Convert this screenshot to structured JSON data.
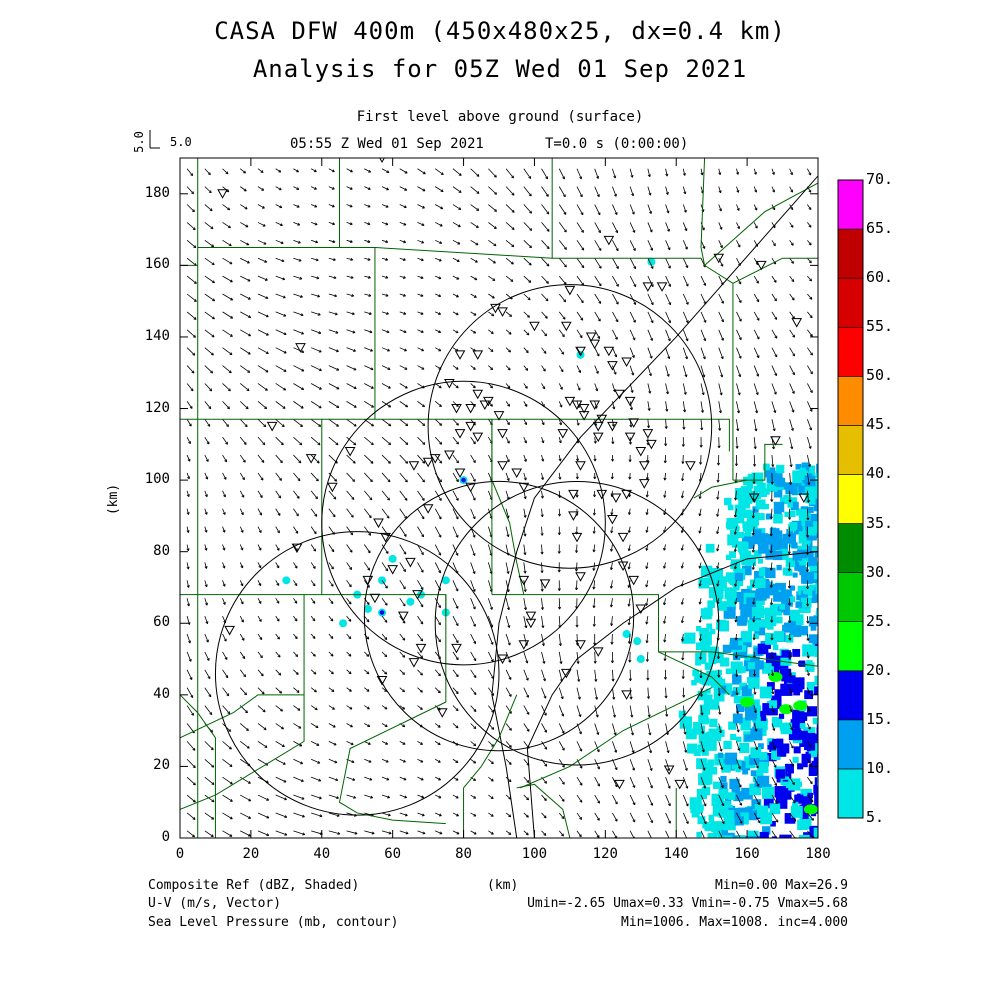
{
  "title": {
    "line1": "CASA DFW 400m (450x480x25, dx=0.4 km)",
    "line2": "Analysis for 05Z Wed 01 Sep 2021"
  },
  "subtitle": {
    "level": "First level above ground (surface)",
    "time": "05:55 Z Wed 01 Sep 2021",
    "tstamp": "T=0.0 s (0:00:00)"
  },
  "vector_key": {
    "value_rot": "5.0",
    "value": "5.0"
  },
  "axes": {
    "xlabel": "(km)",
    "ylabel": "(km)",
    "xlim": [
      0,
      180
    ],
    "ylim": [
      0,
      190
    ],
    "xticks": [
      "0",
      "20",
      "40",
      "60",
      "80",
      "100",
      "120",
      "140",
      "160",
      "180"
    ],
    "yticks": [
      "0",
      "20",
      "40",
      "60",
      "80",
      "100",
      "120",
      "140",
      "160",
      "180"
    ]
  },
  "colorbar": {
    "labels": [
      "5.",
      "10.",
      "15.",
      "20.",
      "25.",
      "30.",
      "35.",
      "40.",
      "45.",
      "50.",
      "55.",
      "60.",
      "65.",
      "70."
    ],
    "colors": [
      "#00e5e5",
      "#00a0f0",
      "#0000f0",
      "#00ff00",
      "#00c800",
      "#008c00",
      "#ffff00",
      "#e6be00",
      "#ff8c00",
      "#ff0000",
      "#d70000",
      "#c00000",
      "#ff00ff"
    ]
  },
  "footer": {
    "field1": "Composite Ref (dBZ, Shaded)",
    "field1_stats": "Min=0.00 Max=26.9",
    "field2": "U-V (m/s, Vector)",
    "field2_stats": "Umin=-2.65 Umax=0.33 Vmin=-0.75 Vmax=5.68",
    "field3": "Sea Level Pressure (mb, contour)",
    "field3_stats": "Min=1006. Max=1008. inc=4.000",
    "xunits": "(km)"
  },
  "chart_data": {
    "type": "map",
    "radar_rings_km": [
      {
        "cx": 110,
        "cy": 115,
        "r": 40
      },
      {
        "cx": 80,
        "cy": 88,
        "r": 40
      },
      {
        "cx": 112,
        "cy": 60,
        "r": 40
      },
      {
        "cx": 50,
        "cy": 46,
        "r": 40
      },
      {
        "cx": 90,
        "cy": 62,
        "r": 38
      }
    ],
    "stations_km": [
      [
        12,
        180
      ],
      [
        57,
        190
      ],
      [
        89,
        192
      ],
      [
        34,
        137
      ],
      [
        26,
        115
      ],
      [
        37,
        106
      ],
      [
        43,
        98
      ],
      [
        48,
        108
      ],
      [
        56,
        88
      ],
      [
        58,
        84
      ],
      [
        53,
        72
      ],
      [
        55,
        67
      ],
      [
        63,
        62
      ],
      [
        60,
        75
      ],
      [
        65,
        77
      ],
      [
        67,
        68
      ],
      [
        70,
        92
      ],
      [
        66,
        104
      ],
      [
        70,
        105
      ],
      [
        72,
        106
      ],
      [
        76,
        107
      ],
      [
        79,
        102
      ],
      [
        82,
        98
      ],
      [
        82,
        115
      ],
      [
        84,
        112
      ],
      [
        78,
        120
      ],
      [
        82,
        120
      ],
      [
        86,
        121
      ],
      [
        90,
        118
      ],
      [
        91,
        113
      ],
      [
        76,
        127
      ],
      [
        79,
        135
      ],
      [
        84,
        135
      ],
      [
        79,
        113
      ],
      [
        87,
        122
      ],
      [
        91,
        104
      ],
      [
        95,
        102
      ],
      [
        97,
        98
      ],
      [
        84,
        124
      ],
      [
        89,
        148
      ],
      [
        100,
        143
      ],
      [
        109,
        143
      ],
      [
        110,
        122
      ],
      [
        108,
        113
      ],
      [
        112,
        121
      ],
      [
        114,
        120
      ],
      [
        114,
        118
      ],
      [
        117,
        121
      ],
      [
        118,
        115
      ],
      [
        118,
        112
      ],
      [
        122,
        115
      ],
      [
        127,
        122
      ],
      [
        127,
        112
      ],
      [
        130,
        108
      ],
      [
        131,
        104
      ],
      [
        113,
        104
      ],
      [
        111,
        96
      ],
      [
        119,
        96
      ],
      [
        123,
        95
      ],
      [
        126,
        96
      ],
      [
        131,
        99
      ],
      [
        133,
        110
      ],
      [
        111,
        90
      ],
      [
        112,
        84
      ],
      [
        122,
        89
      ],
      [
        125,
        84
      ],
      [
        125,
        76
      ],
      [
        128,
        72
      ],
      [
        113,
        73
      ],
      [
        97,
        72
      ],
      [
        103,
        71
      ],
      [
        99,
        60
      ],
      [
        97,
        54
      ],
      [
        91,
        50
      ],
      [
        78,
        53
      ],
      [
        68,
        53
      ],
      [
        66,
        49
      ],
      [
        57,
        44
      ],
      [
        74,
        35
      ],
      [
        14,
        58
      ],
      [
        33,
        81
      ],
      [
        99,
        62
      ],
      [
        130,
        64
      ],
      [
        113,
        54
      ],
      [
        118,
        52
      ],
      [
        109,
        46
      ],
      [
        126,
        40
      ],
      [
        138,
        19
      ],
      [
        124,
        15
      ],
      [
        141,
        15
      ],
      [
        144,
        104
      ],
      [
        152,
        162
      ],
      [
        164,
        160
      ],
      [
        174,
        144
      ],
      [
        162,
        95
      ],
      [
        176,
        95
      ],
      [
        168,
        111
      ],
      [
        136,
        154
      ],
      [
        132,
        154
      ],
      [
        121,
        167
      ],
      [
        110,
        153
      ],
      [
        91,
        147
      ],
      [
        113,
        136
      ],
      [
        117,
        138
      ],
      [
        121,
        136
      ],
      [
        116,
        140
      ],
      [
        122,
        132
      ],
      [
        126,
        133
      ],
      [
        124,
        124
      ],
      [
        119,
        117
      ],
      [
        128,
        116
      ],
      [
        132,
        113
      ]
    ],
    "county_lines_km": [
      [
        [
          5,
          0
        ],
        [
          5,
          190
        ]
      ],
      [
        [
          0,
          117
        ],
        [
          150,
          117
        ],
        [
          155,
          117
        ],
        [
          155,
          108
        ]
      ],
      [
        [
          0,
          68
        ],
        [
          75,
          68
        ],
        [
          75,
          62
        ]
      ],
      [
        [
          45,
          190
        ],
        [
          45,
          165
        ]
      ],
      [
        [
          105,
          190
        ],
        [
          105,
          162
        ]
      ],
      [
        [
          5,
          165
        ],
        [
          55,
          165
        ],
        [
          105,
          162
        ],
        [
          147,
          162
        ]
      ],
      [
        [
          55,
          165
        ],
        [
          55,
          117
        ]
      ],
      [
        [
          0,
          160
        ],
        [
          5,
          160
        ]
      ],
      [
        [
          40,
          117
        ],
        [
          40,
          68
        ]
      ],
      [
        [
          88,
          117
        ],
        [
          88,
          68
        ]
      ],
      [
        [
          88,
          68
        ],
        [
          135,
          68
        ],
        [
          135,
          62
        ]
      ],
      [
        [
          88,
          117
        ],
        [
          88,
          100
        ],
        [
          93,
          88
        ],
        [
          95,
          77
        ],
        [
          97,
          68
        ]
      ],
      [
        [
          75,
          68
        ],
        [
          75,
          38
        ],
        [
          48,
          25
        ],
        [
          45,
          10
        ],
        [
          50,
          7
        ],
        [
          60,
          5
        ],
        [
          75,
          4
        ]
      ],
      [
        [
          35,
          68
        ],
        [
          35,
          40
        ],
        [
          22,
          40
        ],
        [
          15,
          35
        ],
        [
          0,
          28
        ]
      ],
      [
        [
          35,
          40
        ],
        [
          35,
          27
        ],
        [
          10,
          12
        ],
        [
          0,
          8
        ]
      ],
      [
        [
          0,
          40
        ],
        [
          5,
          35
        ],
        [
          10,
          28
        ],
        [
          10,
          0
        ]
      ],
      [
        [
          148,
          160
        ],
        [
          147,
          165
        ],
        [
          148,
          190
        ]
      ],
      [
        [
          148,
          160
        ],
        [
          156,
          155
        ],
        [
          170,
          162
        ],
        [
          180,
          162
        ]
      ],
      [
        [
          148,
          160
        ],
        [
          165,
          175
        ],
        [
          180,
          183
        ]
      ],
      [
        [
          156,
          155
        ],
        [
          156,
          100
        ]
      ],
      [
        [
          156,
          100
        ],
        [
          165,
          100
        ],
        [
          165,
          110
        ],
        [
          170,
          110
        ]
      ],
      [
        [
          145,
          95
        ],
        [
          150,
          98
        ],
        [
          160,
          100
        ]
      ],
      [
        [
          135,
          62
        ],
        [
          135,
          52
        ],
        [
          150,
          52
        ],
        [
          165,
          50
        ],
        [
          180,
          48
        ]
      ],
      [
        [
          135,
          52
        ],
        [
          150,
          45
        ],
        [
          155,
          40
        ]
      ],
      [
        [
          96,
          14
        ],
        [
          110,
          20
        ],
        [
          125,
          30
        ],
        [
          150,
          42
        ]
      ],
      [
        [
          110,
          0
        ],
        [
          108,
          8
        ],
        [
          100,
          15
        ],
        [
          95,
          14
        ]
      ],
      [
        [
          140,
          0
        ],
        [
          140,
          14
        ]
      ],
      [
        [
          85,
          20
        ],
        [
          80,
          14
        ],
        [
          80,
          0
        ]
      ],
      [
        [
          85,
          20
        ],
        [
          90,
          28
        ],
        [
          95,
          40
        ]
      ]
    ],
    "highways_km": [
      [
        [
          95,
          0
        ],
        [
          92,
          20
        ],
        [
          88,
          40
        ],
        [
          90,
          60
        ],
        [
          95,
          80
        ],
        [
          100,
          95
        ],
        [
          113,
          112
        ],
        [
          140,
          140
        ],
        [
          180,
          185
        ]
      ],
      [
        [
          100,
          0
        ],
        [
          98,
          25
        ],
        [
          105,
          40
        ],
        [
          112,
          50
        ],
        [
          125,
          60
        ],
        [
          140,
          70
        ],
        [
          160,
          78
        ],
        [
          180,
          80
        ]
      ]
    ],
    "reflectivity_cells_km": [
      [
        57,
        72,
        1
      ],
      [
        57,
        63,
        2
      ],
      [
        65,
        66,
        1
      ],
      [
        53,
        64,
        1
      ],
      [
        50,
        68,
        1
      ],
      [
        60,
        78,
        1
      ],
      [
        68,
        68,
        1
      ],
      [
        75,
        63,
        1
      ],
      [
        75,
        72,
        1
      ],
      [
        80,
        100,
        2
      ],
      [
        133,
        161,
        1
      ],
      [
        113,
        135,
        1
      ],
      [
        46,
        60,
        1
      ],
      [
        30,
        72,
        1
      ],
      [
        129,
        55,
        1
      ],
      [
        130,
        50,
        1
      ],
      [
        126,
        57,
        1
      ]
    ]
  }
}
